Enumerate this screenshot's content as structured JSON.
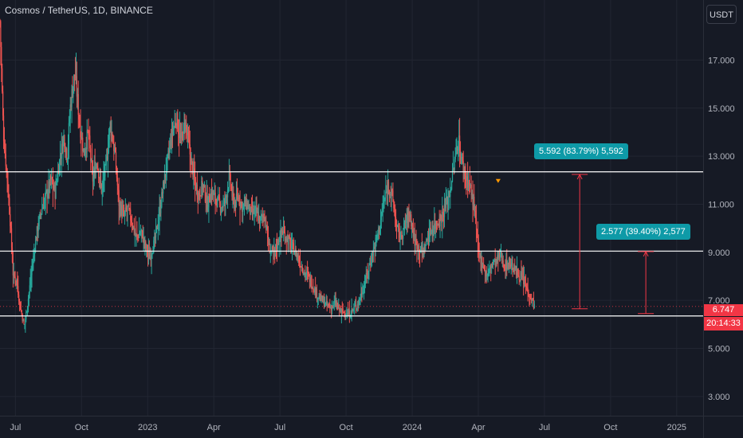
{
  "header": {
    "title": "Cosmos / TetherUS, 1D, BINANCE"
  },
  "toolbar": {
    "currency_label": "USDT"
  },
  "chart_data": {
    "type": "candlestick",
    "title": "Cosmos / TetherUS, 1D, BINANCE",
    "y_axis": {
      "ticks": [
        "3.000",
        "5.000",
        "7.000",
        "9.000",
        "11.000",
        "13.000",
        "15.000",
        "17.000"
      ],
      "tick_values": [
        3,
        5,
        7,
        9,
        11,
        13,
        15,
        17
      ],
      "range": [
        2.2,
        19.5
      ],
      "side": "right"
    },
    "x_axis": {
      "ticks": [
        "Jul",
        "Oct",
        "2023",
        "Apr",
        "Jul",
        "Oct",
        "2024",
        "Apr",
        "Jul",
        "Oct",
        "2025"
      ],
      "tick_months": [
        6,
        9,
        12,
        15,
        18,
        21,
        24,
        27,
        30,
        33,
        36
      ],
      "range_months": [
        5.3,
        37.2
      ]
    },
    "horizontal_lines": [
      12.35,
      9.05,
      6.35
    ],
    "current_price": {
      "value": 6.747,
      "label": "6.747",
      "countdown": "20:14:33"
    },
    "measurements": [
      {
        "label": "5.592 (83.79%) 5,592",
        "from": 6.65,
        "to": 12.24,
        "month": 31.6
      },
      {
        "label": "2.577 (39.40%) 2,577",
        "from": 6.45,
        "to": 9.03,
        "month": 34.6
      }
    ],
    "series": [
      {
        "values": [
          [
            5.3,
            18.6
          ],
          [
            5.45,
            14.0
          ],
          [
            5.6,
            12.4
          ],
          [
            5.75,
            10.5
          ],
          [
            5.9,
            8.0
          ],
          [
            6.05,
            7.9
          ],
          [
            6.2,
            6.8
          ],
          [
            6.4,
            5.9
          ],
          [
            6.6,
            7.2
          ],
          [
            6.8,
            8.7
          ],
          [
            7.0,
            10.0
          ],
          [
            7.2,
            10.8
          ],
          [
            7.4,
            11.4
          ],
          [
            7.6,
            12.0
          ],
          [
            7.8,
            11.5
          ],
          [
            8.0,
            12.8
          ],
          [
            8.2,
            13.8
          ],
          [
            8.35,
            13.0
          ],
          [
            8.5,
            15.2
          ],
          [
            8.7,
            16.5
          ],
          [
            8.9,
            14.5
          ],
          [
            9.1,
            13.1
          ],
          [
            9.3,
            14.0
          ],
          [
            9.5,
            12.0
          ],
          [
            9.7,
            12.8
          ],
          [
            9.9,
            11.6
          ],
          [
            10.1,
            12.5
          ],
          [
            10.3,
            14.3
          ],
          [
            10.5,
            13.2
          ],
          [
            10.7,
            11.0
          ],
          [
            10.9,
            10.5
          ],
          [
            11.1,
            10.8
          ],
          [
            11.3,
            10.2
          ],
          [
            11.5,
            9.6
          ],
          [
            11.7,
            9.9
          ],
          [
            11.9,
            9.2
          ],
          [
            12.1,
            8.8
          ],
          [
            12.3,
            9.4
          ],
          [
            12.5,
            10.4
          ],
          [
            12.7,
            11.7
          ],
          [
            12.9,
            12.8
          ],
          [
            13.1,
            13.9
          ],
          [
            13.3,
            14.6
          ],
          [
            13.5,
            13.6
          ],
          [
            13.7,
            14.4
          ],
          [
            13.9,
            13.2
          ],
          [
            14.1,
            12.1
          ],
          [
            14.3,
            11.4
          ],
          [
            14.5,
            11.8
          ],
          [
            14.7,
            11.0
          ],
          [
            14.9,
            11.5
          ],
          [
            15.1,
            11.2
          ],
          [
            15.3,
            10.9
          ],
          [
            15.5,
            11.0
          ],
          [
            15.7,
            12.1
          ],
          [
            15.9,
            11.0
          ],
          [
            16.1,
            11.3
          ],
          [
            16.3,
            10.9
          ],
          [
            16.5,
            11.0
          ],
          [
            16.7,
            10.6
          ],
          [
            16.9,
            10.7
          ],
          [
            17.1,
            10.3
          ],
          [
            17.3,
            10.6
          ],
          [
            17.5,
            9.2
          ],
          [
            17.7,
            8.9
          ],
          [
            17.9,
            9.4
          ],
          [
            18.1,
            9.9
          ],
          [
            18.3,
            9.6
          ],
          [
            18.5,
            9.3
          ],
          [
            18.7,
            9.0
          ],
          [
            18.9,
            8.6
          ],
          [
            19.1,
            8.2
          ],
          [
            19.3,
            8.0
          ],
          [
            19.5,
            7.6
          ],
          [
            19.7,
            7.2
          ],
          [
            19.9,
            7.0
          ],
          [
            20.1,
            6.8
          ],
          [
            20.3,
            6.7
          ],
          [
            20.5,
            6.9
          ],
          [
            20.7,
            6.6
          ],
          [
            20.9,
            6.5
          ],
          [
            21.1,
            6.4
          ],
          [
            21.3,
            6.6
          ],
          [
            21.5,
            6.8
          ],
          [
            21.7,
            7.3
          ],
          [
            21.9,
            7.9
          ],
          [
            22.1,
            8.6
          ],
          [
            22.3,
            9.3
          ],
          [
            22.5,
            10.0
          ],
          [
            22.7,
            11.0
          ],
          [
            22.9,
            11.8
          ],
          [
            23.1,
            11.3
          ],
          [
            23.3,
            10.0
          ],
          [
            23.5,
            9.6
          ],
          [
            23.7,
            10.3
          ],
          [
            23.9,
            10.6
          ],
          [
            24.1,
            9.5
          ],
          [
            24.3,
            9.2
          ],
          [
            24.5,
            9.0
          ],
          [
            24.7,
            9.6
          ],
          [
            24.9,
            10.0
          ],
          [
            25.1,
            10.2
          ],
          [
            25.3,
            10.4
          ],
          [
            25.5,
            10.9
          ],
          [
            25.7,
            11.5
          ],
          [
            25.9,
            12.6
          ],
          [
            26.1,
            13.8
          ],
          [
            26.2,
            13.0
          ],
          [
            26.4,
            12.2
          ],
          [
            26.6,
            11.8
          ],
          [
            26.8,
            11.0
          ],
          [
            27.0,
            9.0
          ],
          [
            27.2,
            8.5
          ],
          [
            27.4,
            8.0
          ],
          [
            27.6,
            8.5
          ],
          [
            27.8,
            8.6
          ],
          [
            28.0,
            8.9
          ],
          [
            28.2,
            8.4
          ],
          [
            28.4,
            8.6
          ],
          [
            28.6,
            8.3
          ],
          [
            28.8,
            8.1
          ],
          [
            29.0,
            7.9
          ],
          [
            29.2,
            7.5
          ],
          [
            29.4,
            7.1
          ],
          [
            29.55,
            6.75
          ]
        ]
      }
    ]
  },
  "colors": {
    "background": "#161a25",
    "up": "#26a69a",
    "down": "#ef5350",
    "line": "#ffffff",
    "grid": "#222632",
    "axis_text": "#b2b5be",
    "badge": "#0e9aa7",
    "measure": "#f23645",
    "price_tag": "#f23645",
    "arrow": "#ff9800"
  },
  "icons": {
    "signal_marker": "down-triangle-icon"
  }
}
